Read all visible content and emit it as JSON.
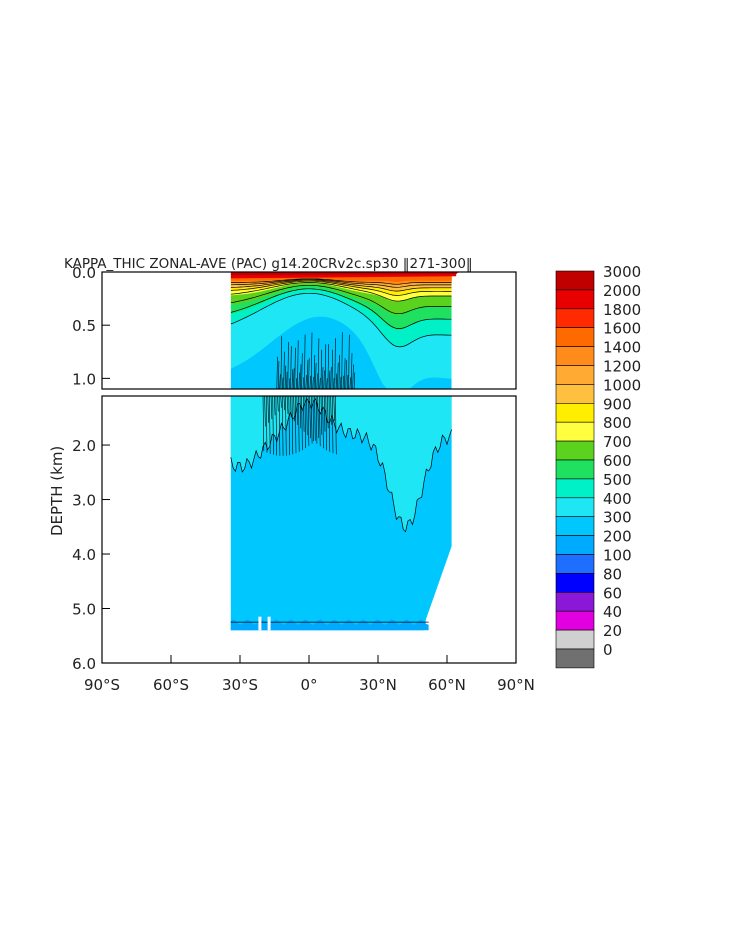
{
  "chart_data": {
    "type": "heatmap",
    "title": "KAPPA_THIC ZONAL-AVE (PAC) g14.20CRv2c.sp30 ‖271-300‖",
    "xlabel": "",
    "ylabel": "DEPTH (km)",
    "x_ticks": [
      "90°S",
      "60°S",
      "30°S",
      "0°",
      "30°N",
      "60°N",
      "90°N"
    ],
    "x_tick_values": [
      -90,
      -60,
      -30,
      0,
      30,
      60,
      90
    ],
    "xlim": [
      -90,
      90
    ],
    "upper_panel": {
      "ylim": [
        0.0,
        1.1
      ],
      "y_ticks": [
        "0.0",
        "0.5",
        "1.0"
      ],
      "y_tick_values": [
        0.0,
        0.5,
        1.0
      ]
    },
    "lower_panel": {
      "ylim": [
        1.1,
        6.0
      ],
      "y_ticks": [
        "2.0",
        "3.0",
        "4.0",
        "5.0",
        "6.0"
      ],
      "y_tick_values": [
        2.0,
        3.0,
        4.0,
        5.0,
        6.0
      ]
    },
    "data_extent": {
      "lat_min": -34,
      "lat_max": 62,
      "max_depth_km": 5.4
    },
    "colorbar": {
      "levels": [
        "3000",
        "2000",
        "1800",
        "1600",
        "1400",
        "1200",
        "1000",
        "900",
        "800",
        "700",
        "600",
        "500",
        "400",
        "300",
        "200",
        "100",
        "80",
        "60",
        "40",
        "20",
        "0"
      ],
      "colors": [
        "#c00000",
        "#e80000",
        "#ff2a00",
        "#ff6a00",
        "#ff8c1a",
        "#ffaa33",
        "#ffc040",
        "#ffee00",
        "#ffff40",
        "#5ad21e",
        "#20e060",
        "#00f0c8",
        "#1ee6f5",
        "#00c8ff",
        "#00aaff",
        "#1e6eff",
        "#0000ff",
        "#8a18d6",
        "#e000e0",
        "#d0d0d0",
        "#707070"
      ]
    },
    "legend": "right"
  }
}
